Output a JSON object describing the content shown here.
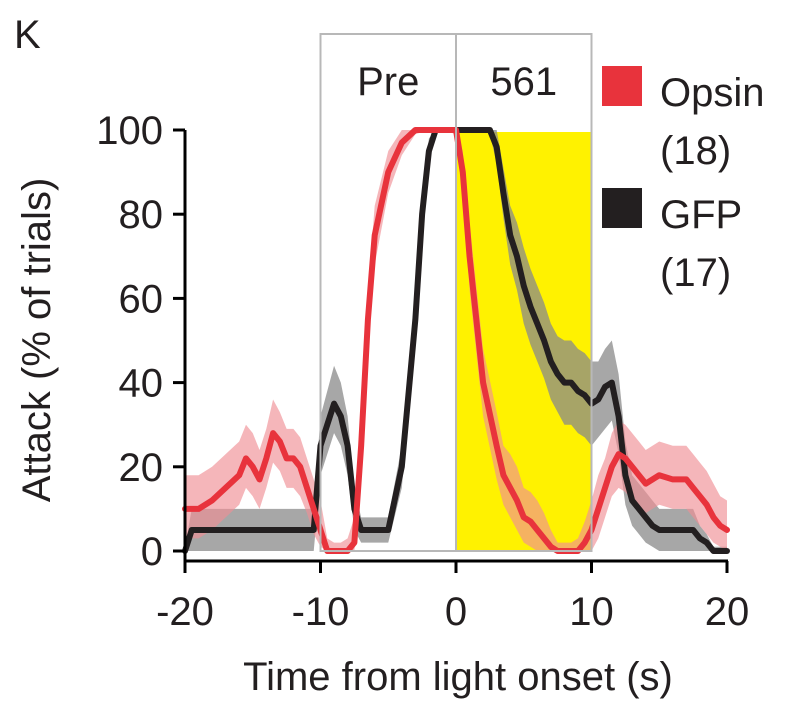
{
  "panel_label": "K",
  "colors": {
    "opsin": "#e8333c",
    "opsin_band": "#f08f95",
    "gfp": "#231f20",
    "gfp_band": "#8a8a8a",
    "light": "#fff200",
    "window_border": "#b8b8b8"
  },
  "chart_data": {
    "type": "line",
    "xlabel": "Time from light onset (s)",
    "ylabel": "Attack (% of trials)",
    "xlim": [
      -20,
      20
    ],
    "ylim": [
      0,
      100
    ],
    "xticks": [
      -20,
      -10,
      0,
      10,
      20
    ],
    "yticks": [
      0,
      20,
      40,
      60,
      80,
      100
    ],
    "grid": false,
    "legend_position": "right",
    "windows": [
      {
        "label": "Pre",
        "x_start": -10,
        "x_end": 0
      },
      {
        "label": "561",
        "x_start": 0,
        "x_end": 10
      }
    ],
    "light_period": {
      "x_start": 0,
      "x_end": 10
    },
    "series": [
      {
        "name": "GFP",
        "n_label": "(17)",
        "x": [
          -20,
          -19.5,
          -19,
          -17,
          -15,
          -13,
          -11,
          -10.5,
          -10,
          -9.5,
          -9,
          -8.5,
          -8,
          -7.5,
          -7,
          -6.5,
          -6,
          -5.5,
          -5,
          -4,
          -3,
          -2.5,
          -2,
          -1.5,
          -1,
          -0.5,
          0,
          0.5,
          1,
          2,
          2.5,
          3,
          3.5,
          4,
          4.5,
          5,
          5.5,
          6,
          6.5,
          7,
          7.5,
          8,
          8.5,
          9,
          9.5,
          10,
          10.5,
          11,
          11.5,
          12,
          12.5,
          13,
          13.5,
          14,
          14.5,
          15,
          15.5,
          16,
          16.5,
          17,
          17.5,
          18,
          18.5,
          19,
          20
        ],
        "values": [
          0,
          5,
          5,
          5,
          5,
          5,
          5,
          5,
          25,
          30,
          35,
          32,
          25,
          10,
          5,
          5,
          5,
          5,
          5,
          20,
          55,
          80,
          95,
          100,
          100,
          100,
          100,
          100,
          100,
          100,
          100,
          96,
          85,
          75,
          70,
          63,
          58,
          54,
          50,
          45,
          42,
          40,
          40,
          38,
          37,
          35,
          36,
          39,
          40,
          32,
          18,
          12,
          10,
          8,
          6,
          5,
          5,
          5,
          5,
          5,
          5,
          3,
          2,
          0,
          0
        ],
        "lower": [
          0,
          0,
          0,
          0,
          0,
          0,
          0,
          0,
          18,
          23,
          28,
          25,
          18,
          5,
          2,
          2,
          2,
          2,
          2,
          15,
          50,
          75,
          92,
          99,
          100,
          100,
          100,
          100,
          100,
          100,
          99,
          92,
          79,
          68,
          62,
          54,
          49,
          45,
          41,
          36,
          33,
          30,
          30,
          28,
          27,
          25,
          27,
          29,
          31,
          23,
          11,
          6,
          4,
          2,
          1,
          0,
          0,
          0,
          0,
          0,
          0,
          0,
          0,
          0,
          0
        ],
        "upper": [
          1,
          10,
          10,
          10,
          10,
          10,
          10,
          10,
          32,
          38,
          44,
          40,
          32,
          15,
          8,
          8,
          8,
          8,
          8,
          25,
          60,
          85,
          98,
          100,
          100,
          100,
          100,
          100,
          100,
          100,
          100,
          100,
          91,
          82,
          78,
          72,
          67,
          63,
          59,
          54,
          51,
          50,
          50,
          48,
          47,
          45,
          45,
          48,
          50,
          42,
          26,
          18,
          16,
          14,
          12,
          10,
          10,
          10,
          10,
          10,
          10,
          6,
          4,
          1,
          1
        ]
      },
      {
        "name": "Opsin",
        "n_label": "(18)",
        "x": [
          -20,
          -19,
          -18,
          -17,
          -16,
          -15.5,
          -15,
          -14.5,
          -14,
          -13.5,
          -13,
          -12.5,
          -12,
          -11.5,
          -11,
          -10.5,
          -10,
          -9.5,
          -9,
          -8.5,
          -8,
          -7.5,
          -7,
          -6.5,
          -6,
          -5,
          -4,
          -3,
          -2,
          -1.5,
          -1,
          0,
          0.5,
          1,
          2,
          3,
          3.5,
          4,
          4.5,
          5,
          5.5,
          6,
          6.5,
          7,
          7.5,
          8,
          8.5,
          9,
          9.5,
          10,
          10.5,
          11,
          11.5,
          12,
          12.5,
          13,
          13.5,
          14,
          14.5,
          15,
          16,
          17,
          17.5,
          18,
          18.5,
          19,
          19.5,
          20
        ],
        "values": [
          10,
          10,
          12,
          15,
          18,
          22,
          20,
          17,
          22,
          28,
          26,
          22,
          22,
          20,
          15,
          10,
          5,
          0,
          0,
          0,
          0,
          2,
          25,
          55,
          75,
          90,
          97,
          100,
          100,
          100,
          100,
          100,
          90,
          70,
          40,
          25,
          18,
          15,
          12,
          8,
          7,
          5,
          3,
          1,
          0,
          0,
          0,
          0,
          2,
          5,
          10,
          15,
          20,
          23,
          22,
          20,
          18,
          16,
          17,
          18,
          17,
          17,
          15,
          13,
          11,
          8,
          6,
          5
        ],
        "lower": [
          3,
          3,
          5,
          8,
          11,
          15,
          13,
          10,
          15,
          21,
          19,
          15,
          15,
          13,
          9,
          4,
          1,
          0,
          0,
          0,
          0,
          0,
          18,
          48,
          68,
          85,
          94,
          99,
          100,
          100,
          100,
          99,
          85,
          62,
          32,
          17,
          11,
          8,
          5,
          2,
          1,
          0,
          0,
          0,
          0,
          0,
          0,
          0,
          0,
          0,
          3,
          8,
          13,
          15,
          14,
          12,
          10,
          9,
          10,
          11,
          10,
          10,
          8,
          6,
          4,
          2,
          1,
          0
        ],
        "upper": [
          18,
          18,
          20,
          23,
          26,
          30,
          28,
          24,
          29,
          36,
          33,
          29,
          29,
          27,
          22,
          17,
          12,
          3,
          2,
          2,
          3,
          8,
          32,
          62,
          82,
          95,
          100,
          100,
          100,
          100,
          100,
          100,
          95,
          78,
          48,
          33,
          25,
          23,
          20,
          15,
          14,
          12,
          9,
          5,
          2,
          2,
          2,
          3,
          7,
          12,
          18,
          22,
          28,
          31,
          30,
          28,
          26,
          24,
          25,
          26,
          25,
          25,
          23,
          21,
          19,
          16,
          13,
          12
        ]
      }
    ]
  }
}
